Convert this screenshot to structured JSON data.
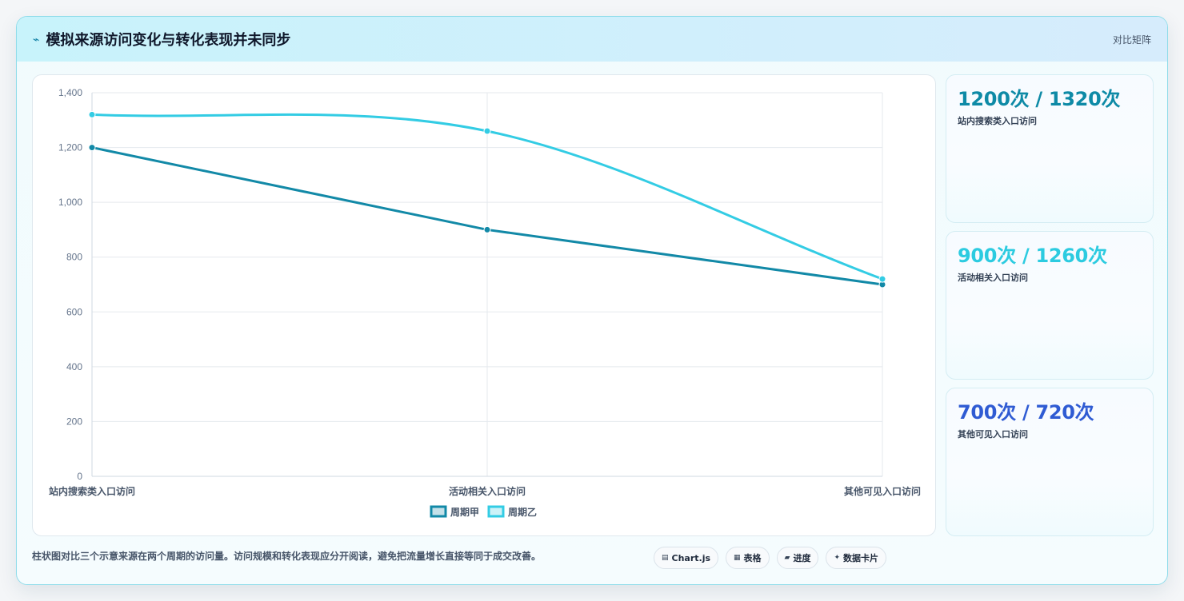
{
  "header": {
    "title": "模拟来源访问变化与转化表现并未同步",
    "right_label": "对比矩阵",
    "icon": "trend-icon"
  },
  "chart_data": {
    "type": "line",
    "categories": [
      "站内搜索类入口访问",
      "活动相关入口访问",
      "其他可见入口访问"
    ],
    "series": [
      {
        "name": "周期甲",
        "values": [
          1200,
          900,
          700
        ],
        "color": "#1289a7"
      },
      {
        "name": "周期乙",
        "values": [
          1320,
          1260,
          720
        ],
        "color": "#33cce4"
      }
    ],
    "ylim": [
      0,
      1400
    ],
    "yticks": [
      0,
      200,
      400,
      600,
      800,
      "1,000",
      "1,200",
      "1,400"
    ],
    "ytick_values": [
      0,
      200,
      400,
      600,
      800,
      1000,
      1200,
      1400
    ],
    "grid": true,
    "legend": "bottom"
  },
  "stats": [
    {
      "value": "1200次 / 1320次",
      "label": "站内搜索类入口访问",
      "color": "#0e8aa6"
    },
    {
      "value": "900次 / 1260次",
      "label": "活动相关入口访问",
      "color": "#2ccbe0"
    },
    {
      "value": "700次 / 720次",
      "label": "其他可见入口访问",
      "color": "#2f5bd3"
    }
  ],
  "caption": "柱状图对比三个示意来源在两个周期的访问量。访问规模和转化表现应分开阅读，避免把流量增长直接等同于成交改善。",
  "pills": [
    {
      "icon": "▤",
      "label": "Chart.js"
    },
    {
      "icon": "▦",
      "label": "表格"
    },
    {
      "icon": "▰",
      "label": "进度"
    },
    {
      "icon": "✦",
      "label": "数据卡片"
    }
  ]
}
